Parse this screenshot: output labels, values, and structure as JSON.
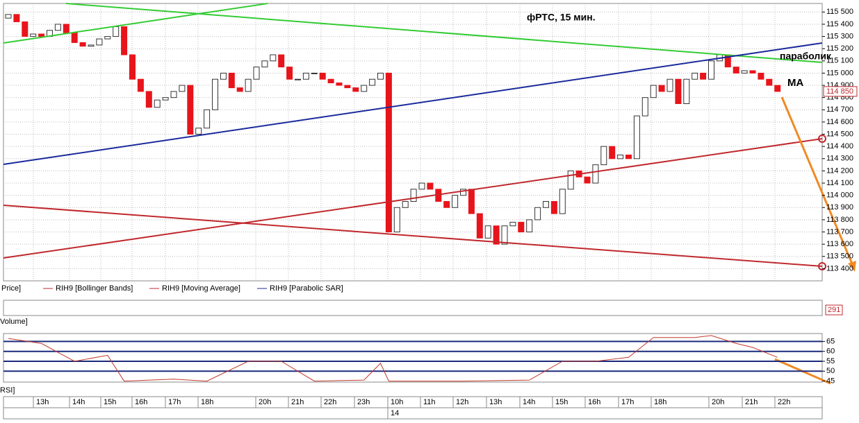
{
  "chart_data": {
    "type": "candlestick",
    "title": "фРТС,  15 мин.",
    "annotations": [
      "параболик",
      "MA"
    ],
    "legend": [
      "Price]",
      "RIH9 [Bollinger Bands]",
      "RIH9 [Moving Average]",
      "RIH9 [Parabolic SAR]"
    ],
    "open": [
      115450,
      115480,
      115420,
      115300,
      115320,
      115300,
      115350,
      115400,
      115330,
      115250,
      115220,
      115230,
      115280,
      115300,
      115380,
      115150,
      114950,
      114850,
      114720,
      114780,
      114800,
      114850,
      114900,
      114500,
      114550,
      114700,
      114950,
      115000,
      114880,
      114850,
      114950,
      115050,
      115100,
      115150,
      115050,
      114950,
      114950,
      115000,
      115000,
      114950,
      114920,
      114900,
      114880,
      114850,
      114900,
      114950,
      115000,
      113700,
      113900,
      113950,
      114050,
      114100,
      114050,
      113950,
      113900,
      114000,
      114050,
      113850,
      113650,
      113750,
      113600,
      113750,
      113780,
      113700,
      113800,
      113900,
      113950,
      113850,
      114050,
      114200,
      114150,
      114100,
      114250,
      114400,
      114300,
      114330,
      114300,
      114650,
      114800,
      114900,
      114850,
      114950,
      114750,
      114950,
      115000,
      114950,
      115100,
      115150,
      115050,
      115000,
      115020,
      115000,
      114950,
      114900
    ],
    "close": [
      115480,
      115420,
      115300,
      115320,
      115300,
      115350,
      115400,
      115330,
      115250,
      115220,
      115230,
      115280,
      115300,
      115380,
      115150,
      114950,
      114850,
      114720,
      114780,
      114800,
      114850,
      114900,
      114500,
      114550,
      114700,
      114950,
      115000,
      114880,
      114850,
      114950,
      115050,
      115100,
      115150,
      115050,
      114950,
      114950,
      115000,
      115000,
      114950,
      114920,
      114900,
      114880,
      114850,
      114900,
      114950,
      115000,
      113700,
      113900,
      113950,
      114050,
      114100,
      114050,
      113950,
      113900,
      114000,
      114050,
      113850,
      113650,
      113750,
      113600,
      113750,
      113780,
      113700,
      113800,
      113900,
      113950,
      113850,
      114050,
      114200,
      114150,
      114100,
      114250,
      114400,
      114300,
      114330,
      114300,
      114650,
      114800,
      114900,
      114850,
      114950,
      114750,
      114950,
      115000,
      114950,
      115100,
      115150,
      115050,
      115000,
      115020,
      115000,
      114950,
      114900,
      114850
    ],
    "up_color": "#ffffff",
    "down_color": "#e8141b",
    "ylim": [
      113300,
      115570
    ],
    "yticks": [
      {
        "value": 113400,
        "label": "113 400"
      },
      {
        "value": 113500,
        "label": "113 500"
      },
      {
        "value": 113600,
        "label": "113 600"
      },
      {
        "value": 113700,
        "label": "113 700"
      },
      {
        "value": 113800,
        "label": "113 800"
      },
      {
        "value": 113900,
        "label": "113 900"
      },
      {
        "value": 114000,
        "label": "114 000"
      },
      {
        "value": 114100,
        "label": "114 100"
      },
      {
        "value": 114200,
        "label": "114 200"
      },
      {
        "value": 114300,
        "label": "114 300"
      },
      {
        "value": 114400,
        "label": "114 400"
      },
      {
        "value": 114500,
        "label": "114 500"
      },
      {
        "value": 114600,
        "label": "114 600"
      },
      {
        "value": 114700,
        "label": "114 700"
      },
      {
        "value": 114800,
        "label": "114 800"
      },
      {
        "value": 114900,
        "label": "114 900"
      },
      {
        "value": 115000,
        "label": "115 000"
      },
      {
        "value": 115100,
        "label": "115 100"
      },
      {
        "value": 115200,
        "label": "115 200"
      },
      {
        "value": 115300,
        "label": "115 300"
      },
      {
        "value": 115400,
        "label": "115 400"
      },
      {
        "value": 115500,
        "label": "115 500"
      }
    ],
    "last_price": {
      "value": 114850,
      "label": "114 850"
    },
    "time_labels": [
      "13h",
      "14h",
      "15h",
      "16h",
      "17h",
      "18h",
      "20h",
      "21h",
      "22h",
      "23h",
      "10h",
      "11h",
      "12h",
      "13h",
      "14h",
      "15h",
      "16h",
      "17h",
      "18h",
      "20h",
      "21h",
      "22h"
    ],
    "date_label": "14",
    "volume": {
      "label": "Volume]",
      "last": 291
    },
    "rsi": {
      "label": "RSI]",
      "color": "#c0392b",
      "x": [
        0,
        4,
        8,
        12,
        14,
        20,
        24,
        29,
        33,
        37,
        43,
        45,
        46,
        55,
        63,
        67,
        71,
        75,
        78,
        83,
        85,
        88,
        90,
        93
      ],
      "values": [
        66.5,
        64,
        55,
        58,
        45,
        46,
        45,
        55,
        55,
        45,
        45.5,
        54,
        45,
        45,
        45.5,
        55,
        55,
        57,
        67,
        67,
        68,
        64,
        62,
        57
      ],
      "ylim": [
        44.5,
        69
      ],
      "yticks": [
        45,
        50,
        55,
        60,
        65
      ],
      "levels": [
        50,
        55,
        60,
        65
      ]
    }
  }
}
